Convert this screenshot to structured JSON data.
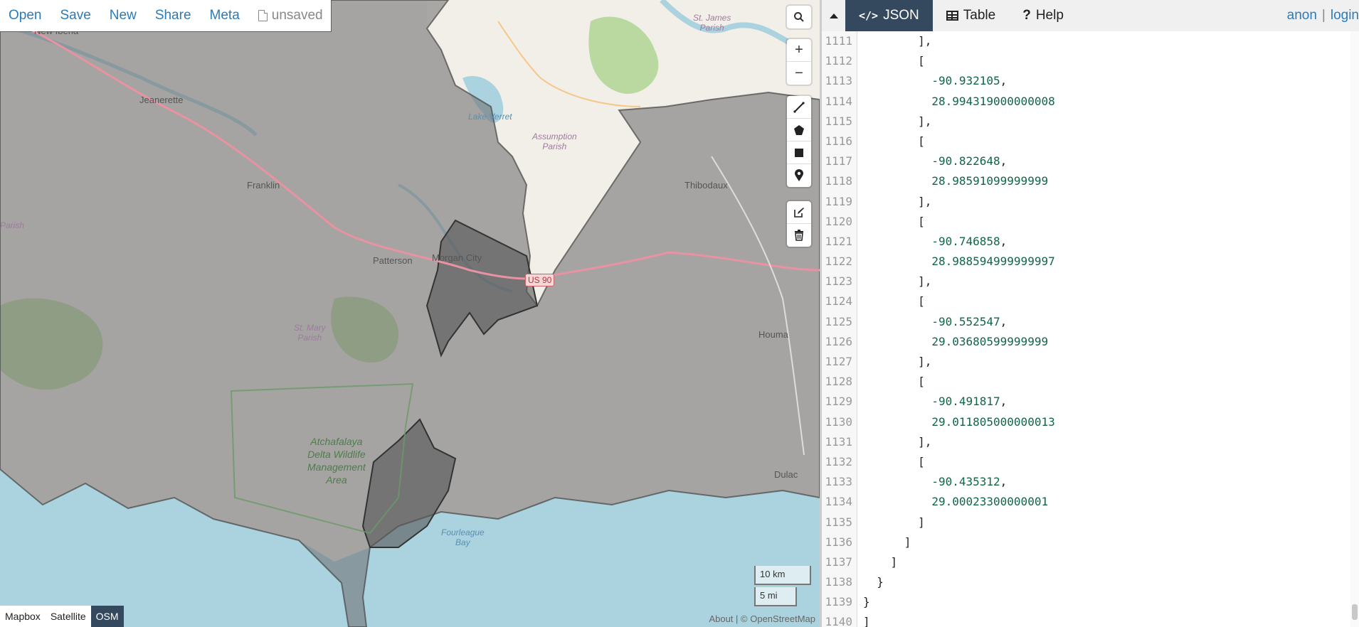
{
  "menubar": {
    "open": "Open",
    "save": "Save",
    "new": "New",
    "share": "Share",
    "meta": "Meta",
    "status": "unsaved"
  },
  "map": {
    "places": {
      "new_iberia": "New Iberia",
      "jeanerette": "Jeanerette",
      "franklin": "Franklin",
      "parish_left": "Parish",
      "patterson": "Patterson",
      "morgan_city": "Morgan City",
      "st_mary": "St. Mary\nParish",
      "lake_verret": "Lake Verret",
      "assumption": "Assumption\nParish",
      "st_james": "St. James\nParish",
      "thibodaux": "Thibodaux",
      "houma": "Houma",
      "dulac": "Dulac",
      "atchafalaya": "Atchafalaya\nDelta Wildlife\nManagement\nArea",
      "fourleague": "Fourleague\nBay",
      "us90": "US 90"
    },
    "scale": {
      "km": "10 km",
      "mi": "5 mi"
    },
    "layers": [
      "Mapbox",
      "Satellite",
      "OSM"
    ],
    "active_layer": "OSM",
    "attribution": {
      "about": "About",
      "sep": " | ",
      "osm": "© OpenStreetMap"
    },
    "tools": [
      "search-icon",
      "zoom-in-icon",
      "zoom-out-icon",
      "draw-line-icon",
      "draw-polygon-icon",
      "draw-rectangle-icon",
      "draw-marker-icon",
      "edit-icon",
      "delete-icon"
    ],
    "colors": {
      "water": "#aad3df",
      "land": "#f2efe9",
      "overlay": "#6b6b6b",
      "road": "#e892a2"
    }
  },
  "tabs": [
    {
      "label": "JSON",
      "icon": "code-icon",
      "active": true
    },
    {
      "label": "Table",
      "icon": "table-icon",
      "active": false
    },
    {
      "label": "Help",
      "icon": "help-icon",
      "active": false
    }
  ],
  "auth": {
    "anon": "anon",
    "sep": "|",
    "login": "login"
  },
  "editor": {
    "lines": [
      {
        "n": "1111",
        "indent": "        ",
        "text": "],",
        "kind": "pun"
      },
      {
        "n": "1112",
        "indent": "        ",
        "text": "[",
        "kind": "pun"
      },
      {
        "n": "1113",
        "indent": "          ",
        "text": "-90.932105",
        "tail": ",",
        "kind": "num"
      },
      {
        "n": "1114",
        "indent": "          ",
        "text": "28.994319000000008",
        "kind": "num"
      },
      {
        "n": "1115",
        "indent": "        ",
        "text": "],",
        "kind": "pun"
      },
      {
        "n": "1116",
        "indent": "        ",
        "text": "[",
        "kind": "pun"
      },
      {
        "n": "1117",
        "indent": "          ",
        "text": "-90.822648",
        "tail": ",",
        "kind": "num"
      },
      {
        "n": "1118",
        "indent": "          ",
        "text": "28.98591099999999",
        "kind": "num"
      },
      {
        "n": "1119",
        "indent": "        ",
        "text": "],",
        "kind": "pun"
      },
      {
        "n": "1120",
        "indent": "        ",
        "text": "[",
        "kind": "pun"
      },
      {
        "n": "1121",
        "indent": "          ",
        "text": "-90.746858",
        "tail": ",",
        "kind": "num"
      },
      {
        "n": "1122",
        "indent": "          ",
        "text": "28.988594999999997",
        "kind": "num"
      },
      {
        "n": "1123",
        "indent": "        ",
        "text": "],",
        "kind": "pun"
      },
      {
        "n": "1124",
        "indent": "        ",
        "text": "[",
        "kind": "pun"
      },
      {
        "n": "1125",
        "indent": "          ",
        "text": "-90.552547",
        "tail": ",",
        "kind": "num"
      },
      {
        "n": "1126",
        "indent": "          ",
        "text": "29.03680599999999",
        "kind": "num"
      },
      {
        "n": "1127",
        "indent": "        ",
        "text": "],",
        "kind": "pun"
      },
      {
        "n": "1128",
        "indent": "        ",
        "text": "[",
        "kind": "pun"
      },
      {
        "n": "1129",
        "indent": "          ",
        "text": "-90.491817",
        "tail": ",",
        "kind": "num"
      },
      {
        "n": "1130",
        "indent": "          ",
        "text": "29.011805000000013",
        "kind": "num"
      },
      {
        "n": "1131",
        "indent": "        ",
        "text": "],",
        "kind": "pun"
      },
      {
        "n": "1132",
        "indent": "        ",
        "text": "[",
        "kind": "pun"
      },
      {
        "n": "1133",
        "indent": "          ",
        "text": "-90.435312",
        "tail": ",",
        "kind": "num"
      },
      {
        "n": "1134",
        "indent": "          ",
        "text": "29.00023300000001",
        "kind": "num"
      },
      {
        "n": "1135",
        "indent": "        ",
        "text": "]",
        "kind": "pun"
      },
      {
        "n": "1136",
        "indent": "      ",
        "text": "]",
        "kind": "pun"
      },
      {
        "n": "1137",
        "indent": "    ",
        "text": "]",
        "kind": "pun"
      },
      {
        "n": "1138",
        "indent": "  ",
        "text": "}",
        "kind": "pun"
      },
      {
        "n": "1139",
        "indent": "",
        "text": "}",
        "kind": "pun"
      },
      {
        "n": "1140",
        "indent": "",
        "text": "]",
        "kind": "pun"
      }
    ]
  }
}
